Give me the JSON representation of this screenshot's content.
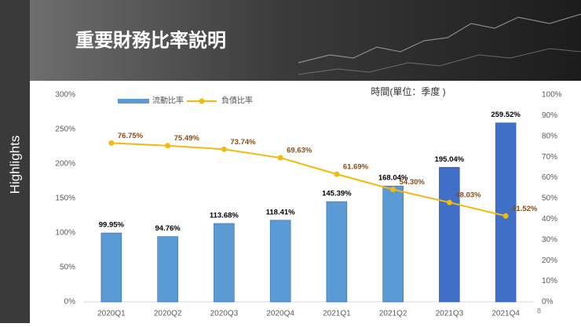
{
  "header": {
    "title": "重要財務比率說明"
  },
  "sidebar": {
    "label": "Highlights"
  },
  "page_number": "8",
  "chart_data": {
    "type": "bar-line",
    "annotation": "時間(單位：季度 )",
    "categories": [
      "2020Q1",
      "2020Q2",
      "2020Q3",
      "2020Q4",
      "2021Q1",
      "2021Q2",
      "2021Q3",
      "2021Q4"
    ],
    "series": [
      {
        "name": "流動比率",
        "type": "bar",
        "color": "#5b9bd5",
        "colors": [
          "#5b9bd5",
          "#5b9bd5",
          "#5b9bd5",
          "#5b9bd5",
          "#5b9bd5",
          "#5b9bd5",
          "#3f6fc6",
          "#3f6fc6"
        ],
        "values": [
          99.95,
          94.76,
          113.68,
          118.41,
          145.39,
          168.04,
          195.04,
          259.52
        ],
        "value_labels": [
          "99.95%",
          "94.76%",
          "113.68%",
          "118.41%",
          "145.39%",
          "168.04%",
          "195.04%",
          "259.52%"
        ]
      },
      {
        "name": "負債比率",
        "type": "line",
        "axis": "y2",
        "color": "#f2b90f",
        "label_color": "#8a4b14",
        "values": [
          76.75,
          75.49,
          73.74,
          69.63,
          61.69,
          54.3,
          48.03,
          41.52
        ],
        "value_labels": [
          "76.75%",
          "75.49%",
          "73.74%",
          "69.63%",
          "61.69%",
          "54.30%",
          "48.03%",
          "41.52%"
        ]
      }
    ],
    "ylim": [
      0,
      300
    ],
    "yticks": [
      {
        "value": 0,
        "label": "0%"
      },
      {
        "value": 50,
        "label": "50%"
      },
      {
        "value": 100,
        "label": "100%"
      },
      {
        "value": 150,
        "label": "150%"
      },
      {
        "value": 200,
        "label": "200%"
      },
      {
        "value": 250,
        "label": "250%"
      },
      {
        "value": 300,
        "label": "300%"
      }
    ],
    "y2lim": [
      0,
      100
    ],
    "y2ticks": [
      {
        "value": 0,
        "label": "0%"
      },
      {
        "value": 10,
        "label": "10%"
      },
      {
        "value": 20,
        "label": "20%"
      },
      {
        "value": 30,
        "label": "30%"
      },
      {
        "value": 40,
        "label": "40%"
      },
      {
        "value": 50,
        "label": "50%"
      },
      {
        "value": 60,
        "label": "60%"
      },
      {
        "value": 70,
        "label": "70%"
      },
      {
        "value": 80,
        "label": "80%"
      },
      {
        "value": 90,
        "label": "90%"
      },
      {
        "value": 100,
        "label": "100%"
      }
    ],
    "grid": false
  }
}
